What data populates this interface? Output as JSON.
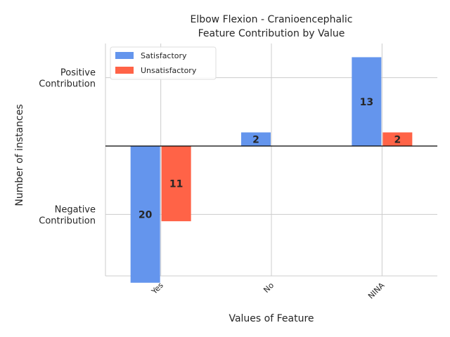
{
  "colors": {
    "satisfactory": "#6495ED",
    "unsatisfactory": "#FF6347",
    "grid": "#cccccc",
    "zero_line": "#000000"
  },
  "chart_data": {
    "type": "bar",
    "title_line1": "Elbow Flexion - Cranioencephalic",
    "title_line2": "Feature Contribution by Value",
    "xlabel": "Values of Feature",
    "ylabel": "Number of instances",
    "ytick_labels": [
      {
        "value": 10,
        "lines": [
          "Positive",
          "Contribution"
        ]
      },
      {
        "value": -10,
        "lines": [
          "Negative",
          "Contribution"
        ]
      }
    ],
    "categories": [
      "Yes",
      "No",
      "NINA"
    ],
    "ylim": [
      -19,
      15
    ],
    "grid": true,
    "legend_position": "top-left",
    "series": [
      {
        "name": "Satisfactory",
        "color_key": "satisfactory",
        "values": [
          -20,
          2,
          13
        ],
        "labels": [
          "20",
          "2",
          "13"
        ]
      },
      {
        "name": "Unsatisfactory",
        "color_key": "unsatisfactory",
        "values": [
          -11,
          0,
          2
        ],
        "labels": [
          "11",
          "",
          "2"
        ]
      }
    ]
  }
}
